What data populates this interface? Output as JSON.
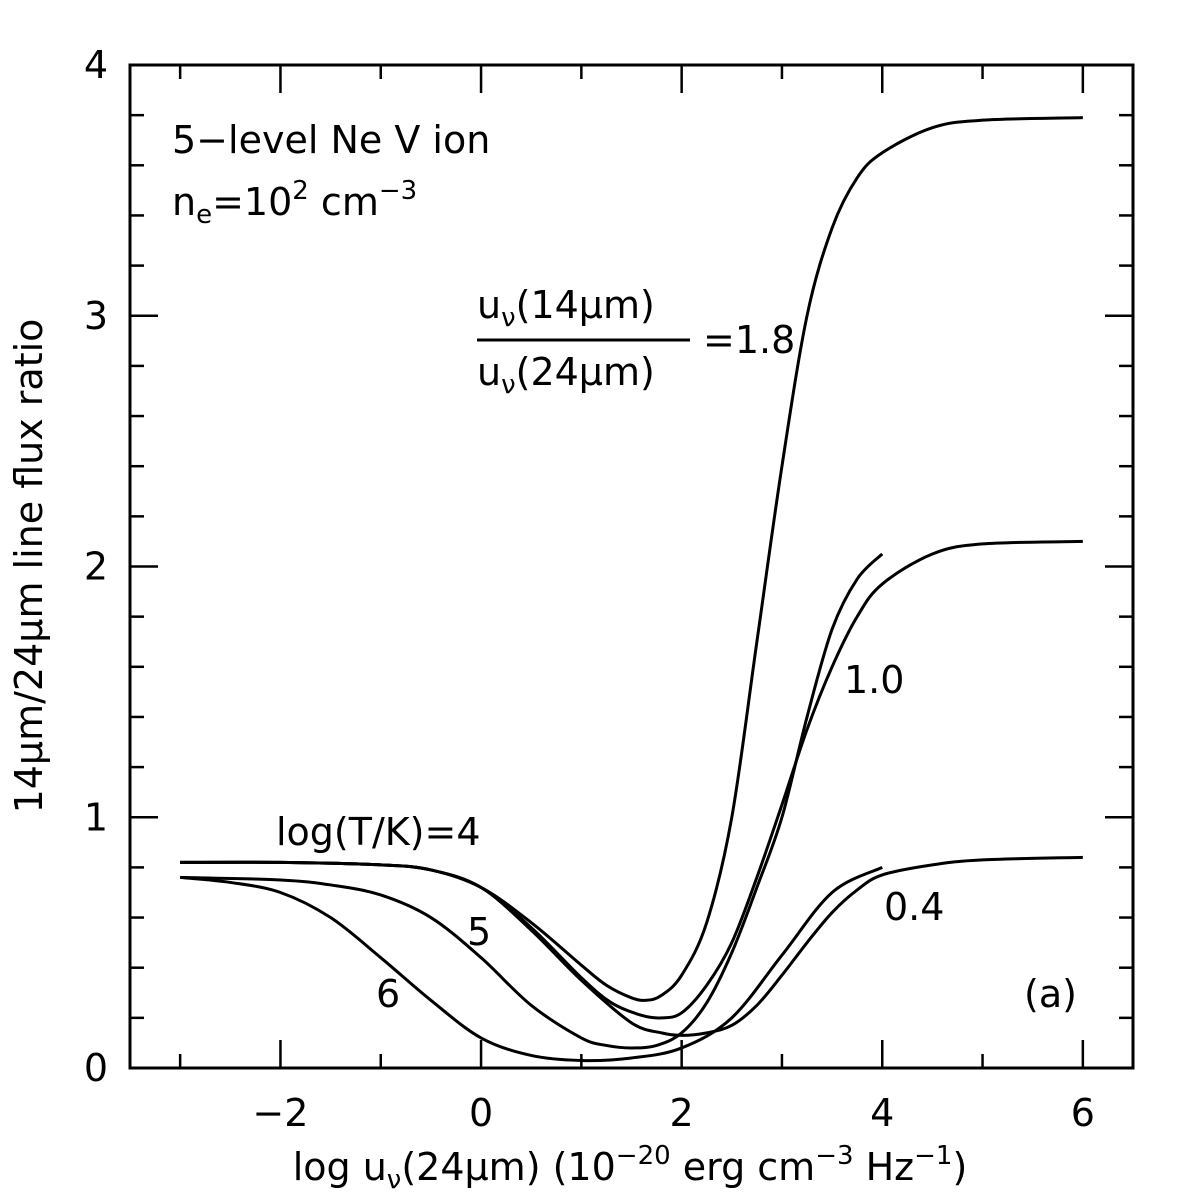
{
  "chart_data": {
    "type": "line",
    "xlabel": {
      "pre": "log u",
      "sub": "ν",
      "mid": "(24μm) (10",
      "sup1": "−20",
      "mid2": " erg cm",
      "sup2": "−3",
      "mid3": " Hz",
      "sup3": "−1",
      "post": ")"
    },
    "ylabel": "14μm/24μm line flux ratio",
    "xlim": [
      -3.5,
      6.5
    ],
    "ylim": [
      0,
      4
    ],
    "xticks": [
      -2,
      0,
      2,
      4,
      6
    ],
    "xtick_labels": [
      "−2",
      "0",
      "2",
      "4",
      "6"
    ],
    "yticks": [
      0,
      1,
      2,
      3,
      4
    ],
    "ytick_labels": [
      "0",
      "1",
      "2",
      "3",
      "4"
    ],
    "annotations": {
      "model_line1": "5−level Ne V ion",
      "model_line2_pre": "n",
      "model_line2_sub": "e",
      "model_line2_mid": "=10",
      "model_line2_sup": "2",
      "model_line2_post": " cm",
      "model_line2_sup2": "−3",
      "frac_num_pre": "u",
      "frac_num_sub": "ν",
      "frac_num_post": "(14μm)",
      "frac_den_pre": "u",
      "frac_den_sub": "ν",
      "frac_den_post": "(24μm)",
      "frac_value": "=1.8",
      "label_1_0": "1.0",
      "label_0_4": "0.4",
      "label_T4": "log(T/K)=4",
      "label_T5": "5",
      "label_T6": "6",
      "panel": "(a)"
    },
    "series": [
      {
        "x": [
          -3,
          -2,
          -1,
          -0.5,
          0,
          0.5,
          1,
          1.25,
          1.5,
          1.65,
          1.8,
          2,
          2.25,
          2.5,
          2.75,
          3,
          3.25,
          3.5,
          3.75,
          4,
          4.5,
          5,
          6
        ],
        "y": [
          0.82,
          0.82,
          0.81,
          0.79,
          0.72,
          0.58,
          0.41,
          0.33,
          0.28,
          0.27,
          0.29,
          0.37,
          0.58,
          1.0,
          1.7,
          2.4,
          3.0,
          3.35,
          3.55,
          3.65,
          3.75,
          3.78,
          3.79
        ]
      },
      {
        "x": [
          -3,
          -2,
          -1,
          -0.5,
          0,
          0.5,
          1,
          1.3,
          1.6,
          1.8,
          2,
          2.25,
          2.5,
          2.75,
          3,
          3.25,
          3.5,
          3.75,
          4,
          4.5,
          5,
          6
        ],
        "y": [
          0.82,
          0.82,
          0.81,
          0.79,
          0.72,
          0.56,
          0.36,
          0.26,
          0.21,
          0.2,
          0.22,
          0.33,
          0.5,
          0.76,
          1.05,
          1.35,
          1.6,
          1.8,
          1.93,
          2.05,
          2.09,
          2.1
        ]
      },
      {
        "x": [
          -3,
          -2,
          -1,
          -0.5,
          0,
          0.5,
          1,
          1.5,
          1.8,
          2,
          2.25,
          2.5,
          2.75,
          3,
          3.25,
          3.5,
          3.75,
          4,
          4.5,
          5,
          6
        ],
        "y": [
          0.82,
          0.82,
          0.81,
          0.79,
          0.72,
          0.55,
          0.35,
          0.18,
          0.14,
          0.13,
          0.14,
          0.17,
          0.25,
          0.37,
          0.5,
          0.62,
          0.71,
          0.77,
          0.81,
          0.83,
          0.84
        ]
      },
      {
        "x": [
          -3,
          -2,
          -1.5,
          -1,
          -0.5,
          0,
          0.5,
          1,
          1.25,
          1.5,
          1.75,
          2,
          2.25,
          2.5,
          2.75,
          3,
          3.25,
          3.5,
          3.75,
          4
        ],
        "y": [
          0.76,
          0.75,
          0.73,
          0.69,
          0.6,
          0.44,
          0.25,
          0.12,
          0.09,
          0.08,
          0.09,
          0.14,
          0.26,
          0.46,
          0.72,
          1.0,
          1.4,
          1.75,
          1.95,
          2.05
        ]
      },
      {
        "x": [
          -3,
          -2.5,
          -2,
          -1.5,
          -1,
          -0.5,
          0,
          0.5,
          1,
          1.5,
          2,
          2.5,
          3,
          3.5,
          4
        ],
        "y": [
          0.76,
          0.74,
          0.7,
          0.6,
          0.44,
          0.27,
          0.12,
          0.05,
          0.03,
          0.04,
          0.08,
          0.2,
          0.45,
          0.7,
          0.8
        ]
      }
    ]
  }
}
